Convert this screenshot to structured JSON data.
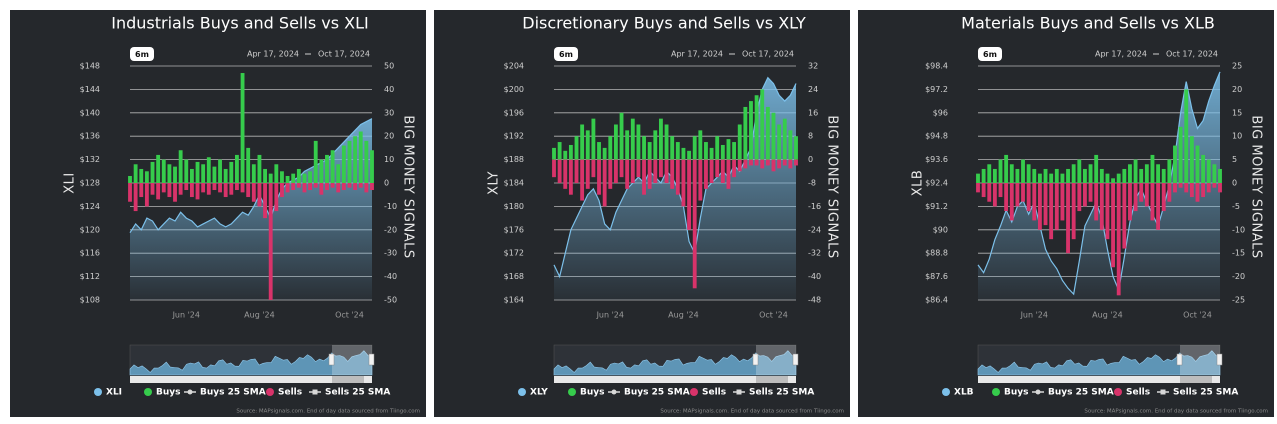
{
  "chart_data": [
    {
      "type": "combo",
      "title": "Industrials Buys and Sells vs XLI",
      "range_button": "6m",
      "range_start": "Apr 17, 2024",
      "range_end": "Oct 17, 2024",
      "ylabel": "XLI",
      "y2label": "BIG MONEY SIGNALS",
      "source": "Source: MAPsignals.com. End of day data sourced from Tiingo.com",
      "xlim": [
        0,
        43
      ],
      "xticks": [
        {
          "value": 10,
          "label": "Jun '24"
        },
        {
          "value": 23,
          "label": "Aug '24"
        },
        {
          "value": 39,
          "label": "Oct '24"
        }
      ],
      "ylim": [
        108,
        148
      ],
      "yticks": [
        {
          "value": 148,
          "label": "$148"
        },
        {
          "value": 144,
          "label": "$144"
        },
        {
          "value": 140,
          "label": "$140"
        },
        {
          "value": 136,
          "label": "$136"
        },
        {
          "value": 132,
          "label": "$132"
        },
        {
          "value": 128,
          "label": "$128"
        },
        {
          "value": 124,
          "label": "$124"
        },
        {
          "value": 120,
          "label": "$120"
        },
        {
          "value": 116,
          "label": "$116"
        },
        {
          "value": 112,
          "label": "$112"
        },
        {
          "value": 108,
          "label": "$108"
        }
      ],
      "y2lim": [
        -50,
        50
      ],
      "y2ticks": [
        50,
        40,
        30,
        20,
        10,
        0,
        -10,
        -20,
        -30,
        -40,
        -50
      ],
      "grid": true,
      "series": [
        {
          "name": "XLI",
          "color": "#7cc0ea",
          "kind": "area",
          "legend_symbol": "circle",
          "values": [
            119.5,
            121,
            120,
            122,
            121.5,
            120,
            121,
            122,
            121.5,
            123,
            122,
            121.5,
            120.5,
            121,
            121.5,
            122,
            121,
            120.5,
            121,
            122,
            123,
            122.5,
            124,
            126,
            124,
            122,
            125,
            127,
            128,
            128.5,
            129,
            130,
            130.5,
            131,
            131.5,
            132,
            133,
            134,
            135,
            136,
            137,
            138,
            138.5,
            139
          ]
        },
        {
          "name": "Buys",
          "color": "#36cc4c",
          "kind": "bar",
          "axis": "y2",
          "legend_symbol": "circle",
          "values": [
            3,
            8,
            6,
            5,
            9,
            12,
            10,
            8,
            7,
            14,
            10,
            6,
            9,
            8,
            11,
            7,
            10,
            6,
            9,
            12,
            47,
            15,
            8,
            12,
            6,
            4,
            8,
            5,
            3,
            4,
            6,
            4,
            5,
            18,
            10,
            12,
            14,
            8,
            16,
            18,
            20,
            22,
            18,
            14
          ]
        },
        {
          "name": "Buys 25 SMA",
          "color": "#d8d8d8",
          "visible": false,
          "legend_symbol": "line-circle"
        },
        {
          "name": "Sells",
          "color": "#d8336a",
          "kind": "bar",
          "axis": "y2",
          "legend_symbol": "circle",
          "values": [
            -8,
            -12,
            -6,
            -10,
            -5,
            -7,
            -4,
            -6,
            -8,
            -5,
            -3,
            -6,
            -7,
            -4,
            -5,
            -3,
            -4,
            -6,
            -5,
            -3,
            -4,
            -6,
            -8,
            -10,
            -15,
            -50,
            -12,
            -6,
            -4,
            -3,
            -2,
            -4,
            -3,
            -2,
            -5,
            -3,
            -2,
            -4,
            -3,
            -2,
            -3,
            -2,
            -4,
            -3
          ]
        },
        {
          "name": "Sells 25 SMA",
          "color": "#d8d8d8",
          "visible": false,
          "legend_symbol": "line-square"
        }
      ]
    },
    {
      "type": "combo",
      "title": "Discretionary Buys and Sells vs XLY",
      "range_button": "6m",
      "range_start": "Apr 17, 2024",
      "range_end": "Oct 17, 2024",
      "ylabel": "XLY",
      "y2label": "BIG MONEY SIGNALS",
      "source": "Source: MAPsignals.com. End of day data sourced from Tiingo.com",
      "xlim": [
        0,
        43
      ],
      "xticks": [
        {
          "value": 10,
          "label": "Jun '24"
        },
        {
          "value": 23,
          "label": "Aug '24"
        },
        {
          "value": 39,
          "label": "Oct '24"
        }
      ],
      "ylim": [
        164,
        204
      ],
      "yticks": [
        {
          "value": 204,
          "label": "$204"
        },
        {
          "value": 200,
          "label": "$200"
        },
        {
          "value": 196,
          "label": "$196"
        },
        {
          "value": 192,
          "label": "$192"
        },
        {
          "value": 188,
          "label": "$188"
        },
        {
          "value": 184,
          "label": "$184"
        },
        {
          "value": 180,
          "label": "$180"
        },
        {
          "value": 176,
          "label": "$176"
        },
        {
          "value": 172,
          "label": "$172"
        },
        {
          "value": 168,
          "label": "$168"
        },
        {
          "value": 164,
          "label": "$164"
        }
      ],
      "y2lim": [
        -48,
        32
      ],
      "y2ticks": [
        32,
        24,
        16,
        8,
        0,
        -8,
        -16,
        -24,
        -32,
        -40,
        -48
      ],
      "grid": true,
      "series": [
        {
          "name": "XLY",
          "color": "#7cc0ea",
          "kind": "area",
          "legend_symbol": "circle",
          "values": [
            170,
            168,
            172,
            176,
            178,
            180,
            182,
            183,
            181,
            177,
            176,
            179,
            181,
            183,
            184,
            185,
            184,
            186,
            185,
            184,
            186,
            185,
            183,
            180,
            174,
            172,
            178,
            183,
            184,
            185,
            186,
            185,
            187,
            186,
            188,
            190,
            196,
            200,
            202,
            201,
            199,
            198,
            199,
            201
          ]
        },
        {
          "name": "Buys",
          "color": "#36cc4c",
          "kind": "bar",
          "axis": "y2",
          "legend_symbol": "circle",
          "values": [
            4,
            6,
            3,
            5,
            8,
            12,
            10,
            14,
            6,
            4,
            8,
            12,
            16,
            10,
            14,
            12,
            8,
            6,
            10,
            14,
            12,
            8,
            6,
            4,
            3,
            8,
            10,
            6,
            4,
            8,
            5,
            7,
            6,
            12,
            18,
            20,
            22,
            24,
            18,
            16,
            12,
            14,
            10,
            8
          ]
        },
        {
          "name": "Buys 25 SMA",
          "color": "#d8d8d8",
          "visible": false,
          "legend_symbol": "line-circle"
        },
        {
          "name": "Sells",
          "color": "#d8336a",
          "kind": "bar",
          "axis": "y2",
          "legend_symbol": "circle",
          "values": [
            -6,
            -8,
            -10,
            -12,
            -8,
            -14,
            -10,
            -6,
            -12,
            -16,
            -10,
            -8,
            -6,
            -10,
            -8,
            -6,
            -12,
            -10,
            -8,
            -6,
            -8,
            -10,
            -12,
            -16,
            -24,
            -44,
            -14,
            -10,
            -8,
            -6,
            -8,
            -10,
            -6,
            -4,
            -3,
            -2,
            -2,
            -3,
            -2,
            -4,
            -3,
            -2,
            -3,
            -2
          ]
        },
        {
          "name": "Sells 25 SMA",
          "color": "#d8d8d8",
          "visible": false,
          "legend_symbol": "line-square"
        }
      ]
    },
    {
      "type": "combo",
      "title": "Materials Buys and Sells vs XLB",
      "range_button": "6m",
      "range_start": "Apr 17, 2024",
      "range_end": "Oct 17, 2024",
      "ylabel": "XLB",
      "y2label": "BIG MONEY SIGNALS",
      "source": "Source: MAPsignals.com. End of day data sourced from Tiingo.com",
      "xlim": [
        0,
        43
      ],
      "xticks": [
        {
          "value": 10,
          "label": "Jun '24"
        },
        {
          "value": 23,
          "label": "Aug '24"
        },
        {
          "value": 39,
          "label": "Oct '24"
        }
      ],
      "ylim": [
        86.4,
        98.4
      ],
      "yticks": [
        {
          "value": 98.4,
          "label": "$98.4"
        },
        {
          "value": 97.2,
          "label": "$97.2"
        },
        {
          "value": 96,
          "label": "$96"
        },
        {
          "value": 94.8,
          "label": "$94.8"
        },
        {
          "value": 93.6,
          "label": "$93.6"
        },
        {
          "value": 92.4,
          "label": "$92.4"
        },
        {
          "value": 91.2,
          "label": "$91.2"
        },
        {
          "value": 90,
          "label": "$90"
        },
        {
          "value": 88.8,
          "label": "$88.8"
        },
        {
          "value": 87.6,
          "label": "$87.6"
        },
        {
          "value": 86.4,
          "label": "$86.4"
        }
      ],
      "y2lim": [
        -25,
        25
      ],
      "y2ticks": [
        25,
        20,
        15,
        10,
        5,
        0,
        -5,
        -10,
        -15,
        -20,
        -25
      ],
      "grid": true,
      "series": [
        {
          "name": "XLB",
          "color": "#7cc0ea",
          "kind": "area",
          "legend_symbol": "circle",
          "values": [
            88.2,
            87.8,
            88.5,
            89.5,
            90.2,
            91,
            90.4,
            91.2,
            91.5,
            90.8,
            91.4,
            90.2,
            89,
            88.4,
            88,
            87.4,
            87,
            86.7,
            88.4,
            90.2,
            90.8,
            91.4,
            90.6,
            89,
            87.6,
            86.9,
            88.6,
            90.4,
            91.6,
            92.1,
            91.4,
            90.8,
            90.2,
            91.2,
            92.3,
            93.8,
            96,
            97.6,
            96.2,
            95.2,
            95.6,
            96.6,
            97.4,
            98.1
          ]
        },
        {
          "name": "Buys",
          "color": "#36cc4c",
          "kind": "bar",
          "axis": "y2",
          "legend_symbol": "circle",
          "values": [
            2,
            3,
            4,
            3,
            5,
            6,
            4,
            3,
            5,
            4,
            3,
            2,
            3,
            2,
            3,
            2,
            3,
            4,
            5,
            3,
            4,
            6,
            3,
            2,
            1,
            2,
            3,
            4,
            5,
            3,
            4,
            6,
            4,
            3,
            5,
            8,
            12,
            20,
            10,
            8,
            6,
            5,
            4,
            3
          ]
        },
        {
          "name": "Buys 25 SMA",
          "color": "#d8d8d8",
          "visible": false,
          "legend_symbol": "line-circle"
        },
        {
          "name": "Sells",
          "color": "#d8336a",
          "kind": "bar",
          "axis": "y2",
          "legend_symbol": "circle",
          "values": [
            -2,
            -3,
            -4,
            -5,
            -3,
            -6,
            -8,
            -5,
            -4,
            -6,
            -8,
            -10,
            -9,
            -12,
            -10,
            -8,
            -15,
            -12,
            -6,
            -5,
            -4,
            -8,
            -10,
            -12,
            -18,
            -24,
            -14,
            -8,
            -6,
            -4,
            -5,
            -8,
            -10,
            -6,
            -4,
            -2,
            -1,
            -2,
            -3,
            -4,
            -3,
            -2,
            -1,
            -2
          ]
        },
        {
          "name": "Sells 25 SMA",
          "color": "#d8d8d8",
          "visible": false,
          "legend_symbol": "line-square"
        }
      ]
    }
  ]
}
